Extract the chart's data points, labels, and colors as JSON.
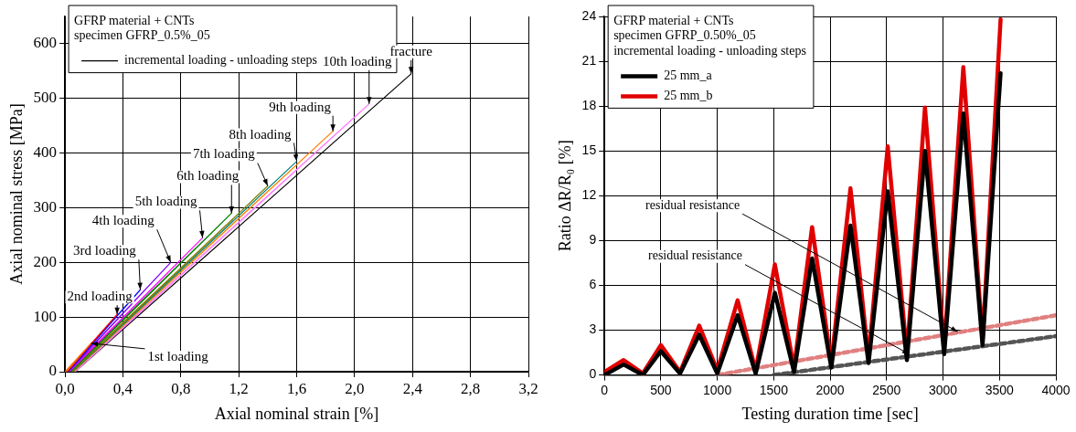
{
  "chart_data": [
    {
      "type": "line",
      "xlabel": "Axial nominal strain [%]",
      "ylabel": "Axial nominal stress [MPa]",
      "legend_title": "GFRP material + CNTs\nspecimen GFRP_0.5%_05",
      "legend": "top left",
      "grid": true,
      "marker": "none",
      "line_style": "solid",
      "xlim": [
        0,
        3.2
      ],
      "xticks": [
        {
          "value": 0,
          "label": "0,0"
        },
        {
          "value": 0.4,
          "label": "0,4"
        },
        {
          "value": 0.8,
          "label": "0,8"
        },
        {
          "value": 1.2,
          "label": "1,2"
        },
        {
          "value": 1.6,
          "label": "1,6"
        },
        {
          "value": 2.0,
          "label": "2,0"
        },
        {
          "value": 2.4,
          "label": "2,4"
        },
        {
          "value": 2.8,
          "label": "2,8"
        },
        {
          "value": 3.2,
          "label": "3,2"
        }
      ],
      "ylim": [
        0,
        650
      ],
      "yticks": [
        0,
        100,
        200,
        300,
        400,
        500,
        600
      ],
      "series": [
        {
          "color": "#ff6600",
          "x": [
            0,
            0.18,
            0.01
          ],
          "values": [
            0,
            52,
            0
          ]
        },
        {
          "color": "#ff0000",
          "x": [
            0.01,
            0.36,
            0.015
          ],
          "values": [
            0,
            105,
            0
          ]
        },
        {
          "color": "#0000ff",
          "x": [
            0.015,
            0.52,
            0.02
          ],
          "values": [
            0,
            150,
            0
          ]
        },
        {
          "color": "#8000ff",
          "x": [
            0.02,
            0.73,
            0.025
          ],
          "values": [
            0,
            200,
            0
          ]
        },
        {
          "color": "#ff00ff",
          "x": [
            0.025,
            0.95,
            0.03
          ],
          "values": [
            0,
            245,
            0
          ]
        },
        {
          "color": "#008000",
          "x": [
            0.03,
            1.15,
            0.04
          ],
          "values": [
            0,
            290,
            0
          ]
        },
        {
          "color": "#808000",
          "x": [
            0.04,
            1.4,
            0.05
          ],
          "values": [
            0,
            340,
            0
          ]
        },
        {
          "color": "#008080",
          "x": [
            0.05,
            1.6,
            0.055
          ],
          "values": [
            0,
            385,
            0
          ]
        },
        {
          "color": "#ff8000",
          "x": [
            0.055,
            1.85,
            0.06
          ],
          "values": [
            0,
            440,
            0
          ]
        },
        {
          "color": "#ff80ff",
          "x": [
            0.06,
            2.1,
            0.07
          ],
          "values": [
            0,
            490,
            0
          ]
        },
        {
          "name": "incremental loading - unloading steps",
          "color": "#000000",
          "x": [
            0.07,
            2.39
          ],
          "values": [
            0,
            545
          ]
        }
      ],
      "annotations": [
        {
          "text": "1st loading",
          "x": 0.18,
          "y": 52
        },
        {
          "text": "2nd loading",
          "x": 0.36,
          "y": 105
        },
        {
          "text": "3rd loading",
          "x": 0.52,
          "y": 150
        },
        {
          "text": "4th loading",
          "x": 0.73,
          "y": 200
        },
        {
          "text": "5th loading",
          "x": 0.95,
          "y": 245
        },
        {
          "text": "6th loading",
          "x": 1.15,
          "y": 290
        },
        {
          "text": "7th loading",
          "x": 1.4,
          "y": 340
        },
        {
          "text": "8th loading",
          "x": 1.6,
          "y": 385
        },
        {
          "text": "9th loading",
          "x": 1.85,
          "y": 440
        },
        {
          "text": "10th loading",
          "x": 2.1,
          "y": 490
        },
        {
          "text": "fracture",
          "x": 2.39,
          "y": 545
        }
      ]
    },
    {
      "type": "line",
      "xlabel": "Testing duration time [sec]",
      "ylabel": "Ratio ΔR/R₀ [%]",
      "legend_title": "GFRP material + CNTs\nspecimen GFRP_0.50%_05\nincremental loading - unloading steps",
      "legend": "top left",
      "grid": true,
      "marker": "none",
      "line_style": "solid",
      "xlim": [
        0,
        4000
      ],
      "xticks": [
        0,
        500,
        1000,
        1500,
        2000,
        2500,
        3000,
        3500,
        4000
      ],
      "ylim": [
        0,
        24
      ],
      "yticks": [
        0,
        3,
        6,
        9,
        12,
        15,
        18,
        21,
        24
      ],
      "x": [
        0,
        170,
        340,
        500,
        670,
        840,
        1000,
        1180,
        1340,
        1510,
        1680,
        1840,
        2010,
        2180,
        2340,
        2510,
        2680,
        2840,
        3010,
        3180,
        3350,
        3510
      ],
      "series": [
        {
          "name": "25 mm_a",
          "color": "#000000",
          "values": [
            0,
            0.7,
            0,
            1.6,
            0.1,
            2.7,
            0.1,
            4.0,
            0.1,
            5.5,
            0.2,
            7.8,
            0.5,
            10.0,
            0.8,
            12.3,
            1.0,
            15.0,
            1.4,
            17.5,
            2.0,
            20.2
          ]
        },
        {
          "name": "25 mm_b",
          "color": "#e00000",
          "values": [
            0.2,
            1.0,
            0.1,
            2.0,
            0.2,
            3.3,
            0.3,
            5.0,
            0.3,
            7.4,
            0.5,
            9.9,
            0.8,
            12.5,
            1.1,
            15.3,
            1.4,
            17.9,
            1.8,
            20.6,
            2.3,
            23.8
          ]
        },
        {
          "type": "line",
          "color": "#e08080",
          "line_style": "dashed",
          "x": [
            1000,
            4000
          ],
          "values": [
            0,
            4.0
          ]
        },
        {
          "type": "line",
          "color": "#555555",
          "line_style": "dashed",
          "x": [
            1500,
            4000
          ],
          "values": [
            0,
            2.6
          ]
        }
      ],
      "annotations": [
        {
          "text": "residual resistance",
          "x": 3130,
          "y": 2.9
        },
        {
          "text": "residual resistance",
          "x": 2700,
          "y": 1.4
        }
      ]
    }
  ]
}
